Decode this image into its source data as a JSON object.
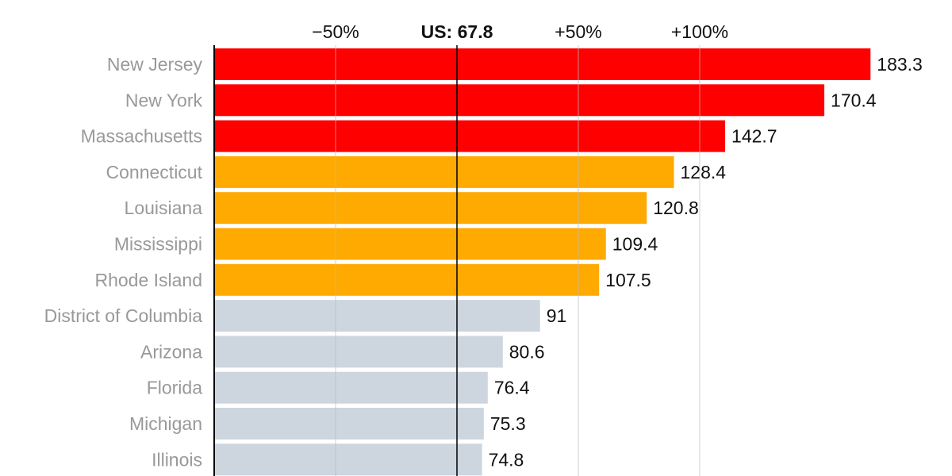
{
  "chart_data": {
    "type": "bar",
    "orientation": "horizontal",
    "categories": [
      "New Jersey",
      "New York",
      "Massachusetts",
      "Connecticut",
      "Louisiana",
      "Mississippi",
      "Rhode Island",
      "District of Columbia",
      "Arizona",
      "Florida",
      "Michigan",
      "Illinois"
    ],
    "values": [
      183.3,
      170.4,
      142.7,
      128.4,
      120.8,
      109.4,
      107.5,
      91,
      80.6,
      76.4,
      75.3,
      74.8
    ],
    "value_labels": [
      "183.3",
      "170.4",
      "142.7",
      "128.4",
      "120.8",
      "109.4",
      "107.5",
      "91",
      "80.6",
      "76.4",
      "75.3",
      "74.8"
    ],
    "groups": [
      "high",
      "high",
      "high",
      "mid",
      "mid",
      "mid",
      "mid",
      "low",
      "low",
      "low",
      "low",
      "low"
    ],
    "colors": {
      "high": "#ff0000",
      "mid": "#ffaa00",
      "low": "#cdd6df",
      "label": "#999999",
      "reference_line": "#000000",
      "grid": "#bbbbbb"
    },
    "reference": {
      "label": "US: 67.8",
      "value": 67.8
    },
    "ticks": [
      {
        "label": "−50%",
        "pct": -50
      },
      {
        "label": "+50%",
        "pct": 50
      },
      {
        "label": "+100%",
        "pct": 100
      }
    ],
    "xlim": [
      0,
      205
    ],
    "grid": true
  }
}
